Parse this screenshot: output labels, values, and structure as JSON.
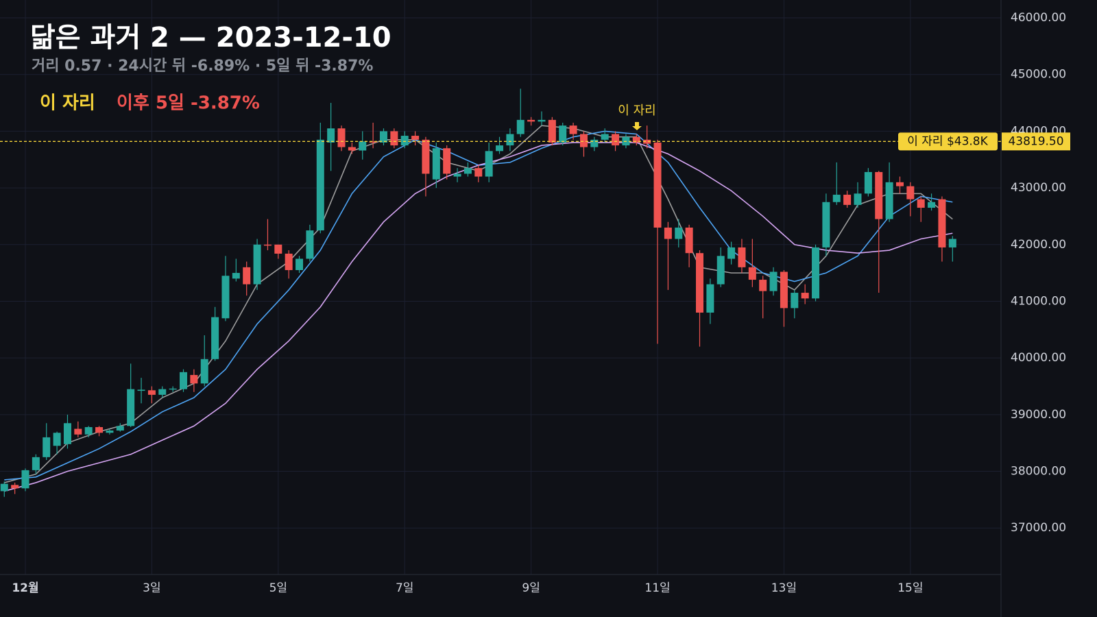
{
  "chart_data": {
    "type": "candlestick",
    "title": "닮은 과거 2 — 2023-12-10",
    "subtitle": "거리 0.57 · 24시간 뒤 -6.89% · 5일 뒤 -3.87%",
    "legend_marker": "이 자리",
    "legend_result": "이후 5일 -3.87%",
    "annotation": "이 자리",
    "price_line": {
      "value": 43819.5,
      "value_label": "43819.50",
      "tag": "이 자리 $43.8K",
      "color": "#f5d33a"
    },
    "up_color": "#26a69a",
    "down_color": "#ef5350",
    "grid": true,
    "xlim": [
      -9.63,
      370.4
    ],
    "ylim": [
      36180,
      46315
    ],
    "xticks": [
      {
        "value": 0,
        "label": "12월"
      },
      {
        "value": 48,
        "label": "3일"
      },
      {
        "value": 96,
        "label": "5일"
      },
      {
        "value": 144,
        "label": "7일"
      },
      {
        "value": 192,
        "label": "9일"
      },
      {
        "value": 240,
        "label": "11일"
      },
      {
        "value": 288,
        "label": "13일"
      },
      {
        "value": 336,
        "label": "15일"
      }
    ],
    "yticks": [
      {
        "value": 37000,
        "label": "37000.00"
      },
      {
        "value": 38000,
        "label": "38000.00"
      },
      {
        "value": 39000,
        "label": "39000.00"
      },
      {
        "value": 40000,
        "label": "40000.00"
      },
      {
        "value": 41000,
        "label": "41000.00"
      },
      {
        "value": 42000,
        "label": "42000.00"
      },
      {
        "value": 43000,
        "label": "43000.00"
      },
      {
        "value": 44000,
        "label": "44000.00"
      },
      {
        "value": 45000,
        "label": "45000.00"
      },
      {
        "value": 46000,
        "label": "46000.00"
      }
    ],
    "x": [
      -8,
      -4,
      0,
      4,
      8,
      12,
      16,
      20,
      24,
      28,
      32,
      36,
      40,
      44,
      48,
      52,
      56,
      60,
      64,
      68,
      72,
      76,
      80,
      84,
      88,
      92,
      96,
      100,
      104,
      108,
      112,
      116,
      120,
      124,
      128,
      132,
      136,
      140,
      144,
      148,
      152,
      156,
      160,
      164,
      168,
      172,
      176,
      180,
      184,
      188,
      192,
      196,
      200,
      204,
      208,
      212,
      216,
      220,
      224,
      228,
      232,
      236,
      240,
      244,
      248,
      252,
      256,
      260,
      264,
      268,
      272,
      276,
      280,
      284,
      288,
      292,
      296,
      300,
      304,
      308,
      312,
      316,
      320,
      324,
      328,
      332,
      336,
      340,
      344,
      348,
      352
    ],
    "open": [
      37650,
      37760,
      37700,
      38020,
      38250,
      38450,
      38480,
      38750,
      38650,
      38780,
      38680,
      38720,
      38800,
      39420,
      39430,
      39350,
      39450,
      39450,
      39700,
      39550,
      39980,
      40700,
      41400,
      41600,
      41300,
      42000,
      42000,
      41840,
      41550,
      41750,
      42250,
      43800,
      44050,
      43720,
      43660,
      43820,
      43800,
      44000,
      43750,
      43920,
      43850,
      43150,
      43700,
      43200,
      43250,
      43350,
      43200,
      43650,
      43750,
      43950,
      44200,
      44170,
      44200,
      43800,
      44100,
      43950,
      43720,
      43850,
      43950,
      43750,
      43900,
      43850,
      43800,
      42300,
      42100,
      42300,
      41850,
      40800,
      41300,
      41750,
      41950,
      41600,
      41380,
      41180,
      41520,
      40880,
      41150,
      41050,
      41950,
      42750,
      42880,
      42700,
      42900,
      43280,
      42450,
      43100,
      43030,
      42800,
      42650,
      42800,
      41950
    ],
    "high": [
      37820,
      37800,
      38050,
      38300,
      38850,
      38700,
      39000,
      38880,
      38800,
      38800,
      38750,
      38850,
      39900,
      39650,
      39500,
      39500,
      39500,
      39800,
      39800,
      40400,
      40900,
      41800,
      41750,
      41700,
      42100,
      42450,
      42000,
      41900,
      41800,
      42350,
      44150,
      44500,
      44100,
      43800,
      44000,
      44150,
      44050,
      44050,
      44000,
      44000,
      43900,
      43800,
      43750,
      43350,
      43450,
      43400,
      43800,
      43900,
      44050,
      44750,
      44250,
      44350,
      44250,
      44150,
      44150,
      44000,
      43900,
      44050,
      44000,
      43950,
      43950,
      44100,
      43850,
      42400,
      42450,
      42350,
      41900,
      41400,
      41950,
      42050,
      42100,
      42100,
      41450,
      41600,
      41550,
      41200,
      41300,
      42000,
      42900,
      43450,
      42950,
      43100,
      43350,
      43300,
      43450,
      43200,
      43100,
      42850,
      42900,
      42850,
      42150
    ],
    "low": [
      37550,
      37600,
      37650,
      37950,
      38200,
      38300,
      38400,
      38600,
      38600,
      38620,
      38650,
      38700,
      38780,
      39200,
      39200,
      39300,
      39400,
      39400,
      39400,
      39500,
      39950,
      40650,
      41350,
      41100,
      41200,
      41900,
      41750,
      41400,
      41500,
      41700,
      42200,
      43300,
      43650,
      43600,
      43500,
      43700,
      43750,
      43700,
      43700,
      43750,
      42850,
      43000,
      43150,
      43100,
      43200,
      43100,
      43100,
      43600,
      43650,
      43900,
      44100,
      44100,
      43750,
      43750,
      43850,
      43550,
      43650,
      43800,
      43650,
      43700,
      43750,
      43700,
      40250,
      41200,
      41950,
      41600,
      40200,
      40600,
      41250,
      41650,
      41500,
      41250,
      40700,
      41100,
      40550,
      40700,
      40950,
      41000,
      41800,
      42700,
      42650,
      42650,
      42850,
      41150,
      42400,
      42900,
      42500,
      42400,
      42600,
      41700,
      41700
    ],
    "close": [
      37780,
      37700,
      38020,
      38250,
      38600,
      38680,
      38850,
      38650,
      38780,
      38680,
      38720,
      38800,
      39450,
      39440,
      39350,
      39450,
      39460,
      39750,
      39550,
      39980,
      40720,
      41450,
      41500,
      41300,
      42000,
      41990,
      41840,
      41550,
      41750,
      42250,
      43850,
      44050,
      43720,
      43660,
      43820,
      43800,
      44000,
      43750,
      43920,
      43850,
      43250,
      43700,
      43250,
      43250,
      43350,
      43200,
      43650,
      43750,
      43950,
      44200,
      44170,
      44200,
      43800,
      44100,
      43950,
      43720,
      43850,
      43950,
      43750,
      43900,
      43800,
      43780,
      42300,
      42100,
      42300,
      41850,
      40800,
      41300,
      41800,
      41950,
      41600,
      41380,
      41180,
      41520,
      40880,
      41150,
      41050,
      41950,
      42750,
      42880,
      42700,
      42900,
      43280,
      42450,
      43100,
      43030,
      42800,
      42650,
      42750,
      41950,
      42100
    ],
    "ma_lines": [
      {
        "color": "#9e9e9e",
        "x": [
          -8,
          4,
          16,
          28,
          40,
          52,
          64,
          76,
          88,
          100,
          112,
          124,
          136,
          148,
          160,
          172,
          184,
          196,
          208,
          220,
          232,
          244,
          256,
          268,
          280,
          292,
          304,
          316,
          328,
          340,
          352
        ],
        "values": [
          37800,
          37950,
          38500,
          38700,
          38850,
          39300,
          39550,
          40300,
          41300,
          41700,
          42300,
          43650,
          43850,
          43850,
          43450,
          43300,
          43600,
          44100,
          44050,
          43900,
          43900,
          42800,
          41600,
          41500,
          41500,
          41200,
          41800,
          42700,
          42900,
          42900,
          42450
        ]
      },
      {
        "color": "#4ea5f5",
        "x": [
          -8,
          4,
          16,
          28,
          40,
          52,
          64,
          76,
          88,
          100,
          112,
          124,
          136,
          148,
          160,
          172,
          184,
          196,
          208,
          220,
          232,
          244,
          256,
          268,
          280,
          292,
          304,
          316,
          328,
          340,
          352
        ],
        "values": [
          37850,
          37900,
          38150,
          38400,
          38700,
          39050,
          39300,
          39800,
          40600,
          41200,
          41900,
          42900,
          43550,
          43850,
          43650,
          43400,
          43450,
          43700,
          43900,
          44000,
          43950,
          43450,
          42650,
          41900,
          41500,
          41350,
          41500,
          41800,
          42500,
          42850,
          42750
        ]
      },
      {
        "color": "#d7a7f5",
        "x": [
          -8,
          4,
          16,
          28,
          40,
          52,
          64,
          76,
          88,
          100,
          112,
          124,
          136,
          148,
          160,
          172,
          184,
          196,
          208,
          220,
          232,
          244,
          256,
          268,
          280,
          292,
          304,
          316,
          328,
          340,
          352
        ],
        "values": [
          37650,
          37800,
          38000,
          38150,
          38300,
          38550,
          38800,
          39200,
          39800,
          40300,
          40900,
          41700,
          42400,
          42900,
          43200,
          43400,
          43550,
          43750,
          43800,
          43800,
          43800,
          43600,
          43300,
          42950,
          42500,
          42000,
          41900,
          41850,
          41900,
          42100,
          42200
        ]
      }
    ]
  }
}
